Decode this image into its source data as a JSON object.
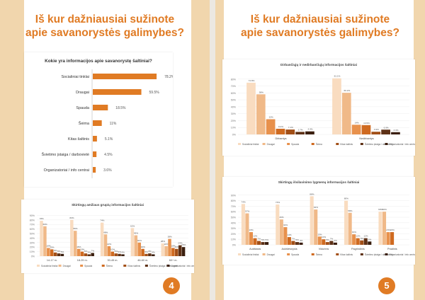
{
  "pages": [
    {
      "title_line1": "Iš kur dažniausiai sužinote",
      "title_line2": "apie savanorystės galimybes?",
      "number": "4"
    },
    {
      "title_line1": "Iš kur dažniausiai sužinote",
      "title_line2": "apie savanorystės galimybes?",
      "number": "5"
    }
  ],
  "colors": {
    "accent": "#e07b24",
    "stripe": "#f1d6ad",
    "series": [
      "#f9dcc0",
      "#f0b988",
      "#e8914c",
      "#cf6a20",
      "#a24f17",
      "#5e3116"
    ]
  },
  "legend": [
    "Socialiniai tinklai",
    "Draugai",
    "Spauda",
    "Šeima",
    "Kitas šaltinis",
    "Švietimo įstaiga / darbovietė",
    "Organizatoriai / info centrai"
  ],
  "chart_data": [
    {
      "type": "bar",
      "orientation": "horizontal",
      "title": "Kokie yra informacijos apie savanorystę šaltiniai?",
      "categories": [
        "Socialiniai tinklai",
        "Draugai",
        "Spauda",
        "Šeima",
        "Kitas šaltinis",
        "Švietimo įstaiga / darbovietė",
        "Organizatoriai / info centrai"
      ],
      "values": [
        78.2,
        59.5,
        18.5,
        11,
        5.1,
        4.5,
        3.6
      ],
      "value_labels": [
        "78.2%",
        "59.5%",
        "18.5%",
        "11%",
        "5.1%",
        "4.5%",
        "3.6%"
      ],
      "xlim": [
        0,
        100
      ]
    },
    {
      "type": "bar",
      "title": "Skirtingų amžiaus grupių informacijos šaltiniai",
      "categories": [
        "14-17 m.",
        "18-29 m.",
        "30-45 m.",
        "46-60 m.",
        "60+ m."
      ],
      "series": [
        {
          "name": "Socialiniai tinklai",
          "values": [
            78,
            80,
            74,
            62,
            28
          ]
        },
        {
          "name": "Draugai",
          "values": [
            66,
            56,
            48,
            46,
            22
          ]
        },
        {
          "name": "Spauda",
          "values": [
            18,
            16,
            22,
            30,
            38
          ]
        },
        {
          "name": "Šeima",
          "values": [
            15,
            10,
            10,
            16,
            18
          ]
        },
        {
          "name": "Kitas šaltinis",
          "values": [
            8,
            6,
            6,
            5,
            16
          ]
        },
        {
          "name": "Švietimo įstaiga / darbovietė",
          "values": [
            6,
            4,
            5,
            6,
            24
          ]
        },
        {
          "name": "Organizatoriai / info centrai",
          "values": [
            5,
            7,
            4,
            4,
            20
          ]
        }
      ],
      "ylim": [
        0,
        100
      ],
      "yticks": [
        "0%",
        "10%",
        "20%",
        "30%",
        "40%",
        "50%",
        "60%",
        "70%",
        "80%",
        "90%"
      ]
    },
    {
      "type": "bar",
      "title": "Dirbančiųjų ir nedirbančiųjų informacijos šaltiniai",
      "categories": [
        "Dirbantys",
        "Nedirbantys"
      ],
      "series": [
        {
          "name": "Socialiniai tinklai",
          "values": [
            74.8,
            81.1
          ]
        },
        {
          "name": "Draugai",
          "values": [
            58,
            60.2
          ]
        },
        {
          "name": "Spauda",
          "values": [
            22,
            14
          ]
        },
        {
          "name": "Šeima",
          "values": [
            8.2,
            13.5
          ]
        },
        {
          "name": "Kitas šaltinis",
          "values": [
            7.1,
            3.9
          ]
        },
        {
          "name": "Švietimo įstaiga / darbovietė",
          "values": [
            3.7,
            6.9
          ]
        },
        {
          "name": "Organizatoriai / info centrai",
          "values": [
            4.4,
            3.3
          ]
        }
      ],
      "value_labels": [
        [
          "74.8%",
          "58%",
          "22%",
          "8.2%",
          "7.1%",
          "3.7%",
          "4.4%"
        ],
        [
          "81.1%",
          "60.2%",
          "14%",
          "13.5%",
          "3.9%",
          "6.9%",
          "3.3%"
        ]
      ],
      "ylim": [
        0,
        90
      ],
      "yticks": [
        "0%",
        "10%",
        "20%",
        "30%",
        "40%",
        "50%",
        "60%",
        "70%",
        "80%"
      ]
    },
    {
      "type": "bar",
      "title": "Skirtingų išsilavinimo lygmenų informacijos šaltiniai",
      "categories": [
        "Aukštasis",
        "Aukštesnysis",
        "Vidurinis",
        "Pagrindinis",
        "Pradinis"
      ],
      "series": [
        {
          "name": "Socialiniai tinklai",
          "values": [
            74,
            73,
            88,
            80,
            60
          ]
        },
        {
          "name": "Draugai",
          "values": [
            57,
            46,
            64,
            58,
            60
          ]
        },
        {
          "name": "Spauda",
          "values": [
            23,
            32,
            15,
            19,
            23
          ]
        },
        {
          "name": "Šeima",
          "values": [
            12,
            14,
            10,
            12,
            23
          ]
        },
        {
          "name": "Kitas šaltinis",
          "values": [
            7,
            7,
            5,
            8,
            0
          ]
        },
        {
          "name": "Švietimo įstaiga / darbovietė",
          "values": [
            5,
            5,
            7,
            12,
            0
          ]
        },
        {
          "name": "Organizatoriai / info centrai",
          "values": [
            5,
            4,
            4,
            6,
            0
          ]
        }
      ],
      "ylim": [
        0,
        100
      ],
      "yticks": [
        "0%",
        "10%",
        "20%",
        "30%",
        "40%",
        "50%",
        "60%",
        "70%",
        "80%",
        "90%"
      ]
    }
  ]
}
